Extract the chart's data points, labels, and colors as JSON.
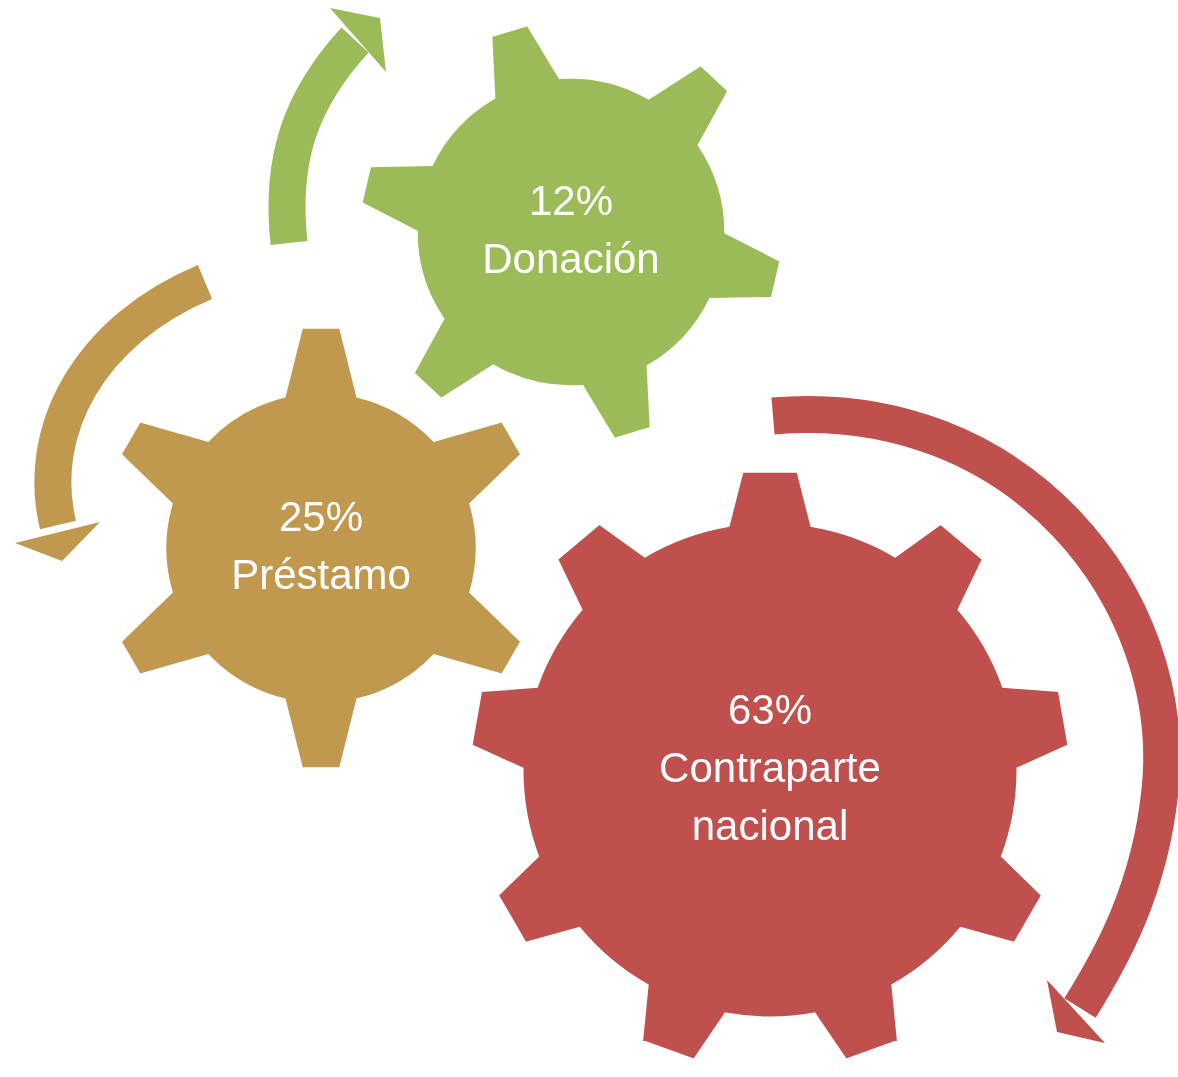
{
  "chart_data": {
    "type": "other",
    "categories": [
      "Donación",
      "Préstamo",
      "Contraparte nacional"
    ],
    "values": [
      12,
      25,
      63
    ],
    "value_labels": [
      "12%",
      "25%",
      "63%"
    ],
    "colors": [
      "#9bbb59",
      "#c0994f",
      "#c0504d"
    ]
  }
}
